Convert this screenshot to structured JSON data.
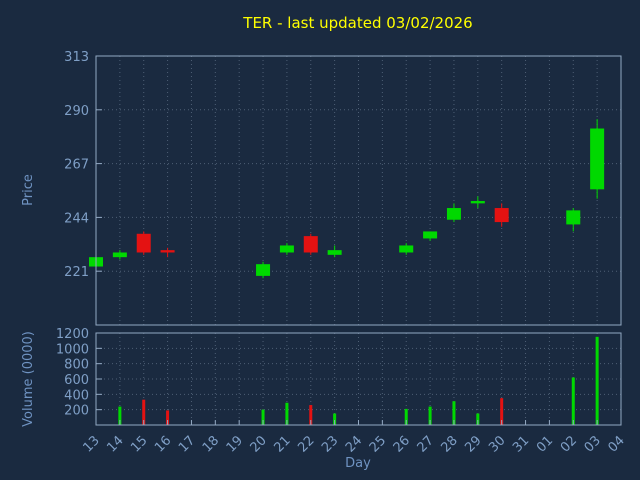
{
  "title": "TER - last updated 03/02/2026",
  "colors": {
    "background": "#1a2a40",
    "title": "#ffff00",
    "axis_label": "#6f93c2",
    "tick_label": "#7f9fc6",
    "border": "#93a9c3",
    "grid": "#4e5f75",
    "up": "#00d900",
    "down": "#e41212"
  },
  "price_axis": {
    "label": "Price",
    "ticks": [
      313,
      290,
      267,
      244,
      221
    ],
    "min": 198,
    "max": 313
  },
  "volume_axis": {
    "label": "Volume (0000)",
    "ticks": [
      1200,
      1000,
      800,
      600,
      400,
      200
    ],
    "min": 0,
    "max": 1200
  },
  "x_axis": {
    "label": "Day",
    "categories": [
      "13",
      "14",
      "15",
      "16",
      "17",
      "18",
      "19",
      "20",
      "21",
      "22",
      "23",
      "24",
      "25",
      "26",
      "27",
      "28",
      "29",
      "30",
      "31",
      "01",
      "02",
      "03",
      "04"
    ]
  },
  "chart_data": {
    "type": "candlestick",
    "title": "TER - last updated 03/02/2026",
    "xlabel": "Day",
    "ylabel_price": "Price",
    "ylabel_volume": "Volume (0000)",
    "price_ylim": [
      198,
      313
    ],
    "volume_ylim": [
      0,
      1200
    ],
    "grid": true,
    "candles": [
      {
        "day": "13",
        "open": 223,
        "high": 228,
        "low": 222,
        "close": 227,
        "volume": 0
      },
      {
        "day": "14",
        "open": 227,
        "high": 230,
        "low": 226,
        "close": 229,
        "volume": 240
      },
      {
        "day": "15",
        "open": 237,
        "high": 238,
        "low": 228,
        "close": 229,
        "volume": 330
      },
      {
        "day": "16",
        "open": 230,
        "high": 231,
        "low": 227,
        "close": 229,
        "volume": 190
      },
      {
        "day": "20",
        "open": 219,
        "high": 225,
        "low": 218,
        "close": 224,
        "volume": 200
      },
      {
        "day": "21",
        "open": 229,
        "high": 233,
        "low": 228,
        "close": 232,
        "volume": 290
      },
      {
        "day": "22",
        "open": 236,
        "high": 237,
        "low": 228,
        "close": 229,
        "volume": 260
      },
      {
        "day": "23",
        "open": 228,
        "high": 232,
        "low": 227,
        "close": 230,
        "volume": 150
      },
      {
        "day": "26",
        "open": 229,
        "high": 233,
        "low": 228,
        "close": 232,
        "volume": 210
      },
      {
        "day": "27",
        "open": 235,
        "high": 238,
        "low": 234,
        "close": 238,
        "volume": 240
      },
      {
        "day": "28",
        "open": 243,
        "high": 250,
        "low": 242,
        "close": 248,
        "volume": 310
      },
      {
        "day": "29",
        "open": 250,
        "high": 253,
        "low": 248,
        "close": 251,
        "volume": 150
      },
      {
        "day": "30",
        "open": 248,
        "high": 250,
        "low": 240,
        "close": 242,
        "volume": 350
      },
      {
        "day": "02",
        "open": 241,
        "high": 248,
        "low": 238,
        "close": 247,
        "volume": 620
      },
      {
        "day": "03",
        "open": 256,
        "high": 286,
        "low": 252,
        "close": 282,
        "volume": 1150
      }
    ]
  }
}
